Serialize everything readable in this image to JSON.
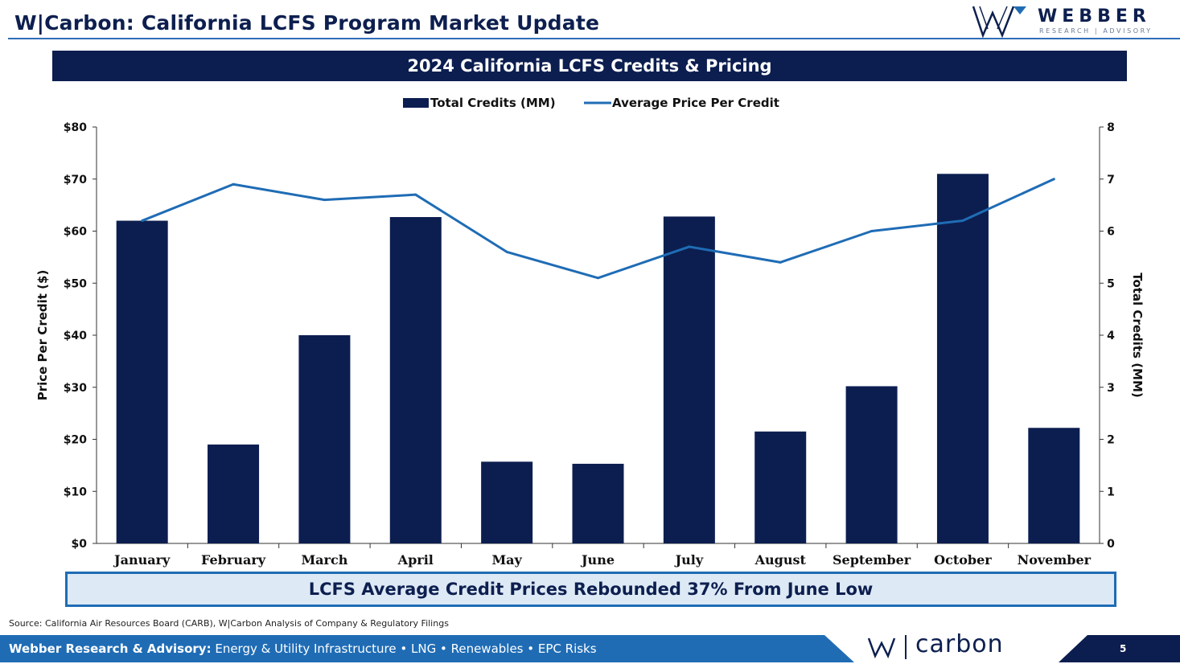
{
  "header": {
    "title": "W|Carbon: California LCFS Program Market Update",
    "logo_word": "WEBBER",
    "logo_sub": "RESEARCH | ADVISORY"
  },
  "banner": "2024 California LCFS Credits & Pricing",
  "chart_data": {
    "type": "bar",
    "title": "2024 California LCFS Credits & Pricing",
    "categories": [
      "January",
      "February",
      "March",
      "April",
      "May",
      "June",
      "July",
      "August",
      "September",
      "October",
      "November"
    ],
    "series": [
      {
        "name": "Total Credits (MM)",
        "type": "bar",
        "axis": "right",
        "values": [
          6.2,
          1.9,
          4.0,
          6.27,
          1.57,
          1.53,
          6.28,
          2.15,
          3.02,
          7.1,
          2.22
        ]
      },
      {
        "name": "Average Price Per Credit",
        "type": "line",
        "axis": "left",
        "values": [
          62,
          69,
          66,
          67,
          56,
          51,
          57,
          54,
          60,
          62,
          70
        ]
      }
    ],
    "ylabel_left": "Price Per Credit ($)",
    "ylabel_right": "Total Credits (MM)",
    "ylim_left": [
      0,
      80
    ],
    "ylim_right": [
      0,
      8
    ],
    "left_ticks": [
      "$0",
      "$10",
      "$20",
      "$30",
      "$40",
      "$50",
      "$60",
      "$70",
      "$80"
    ],
    "right_ticks": [
      "0",
      "1",
      "2",
      "3",
      "4",
      "5",
      "6",
      "7",
      "8"
    ],
    "legend_position": "top-center",
    "grid": false,
    "colors": {
      "bar": "#0c1e50",
      "line": "#1f6cb5"
    }
  },
  "callout": "LCFS Average Credit Prices Rebounded 37% From June Low",
  "source": "Source: California Air Resources Board (CARB), W|Carbon Analysis of Company & Regulatory Filings",
  "footer": {
    "bold": "Webber Research & Advisory:",
    "rest": " Energy & Utility Infrastructure • LNG • Renewables • EPC Risks",
    "carbon_word": "carbon",
    "page_number": "5"
  }
}
